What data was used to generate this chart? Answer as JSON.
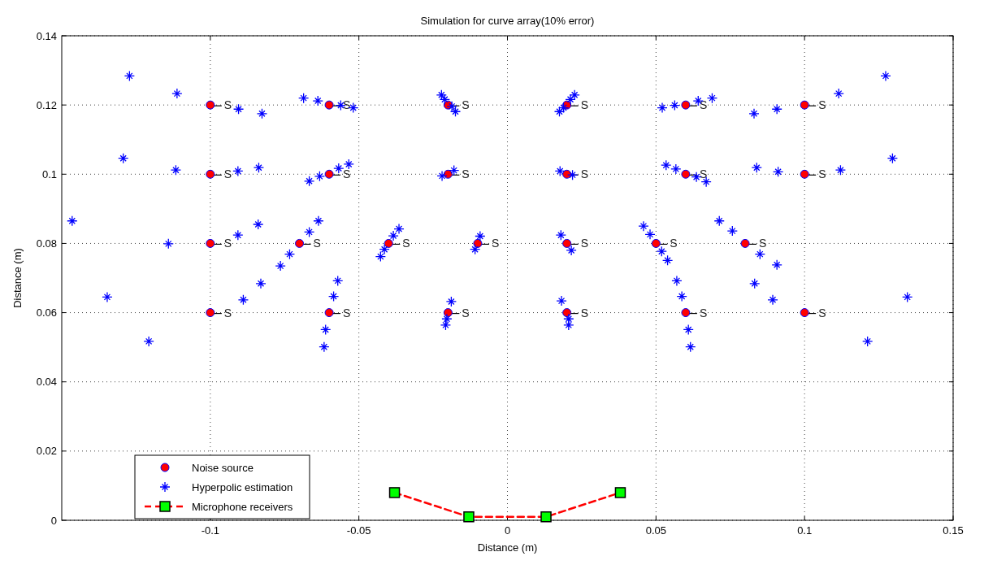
{
  "chart_data": {
    "type": "scatter",
    "title": "Simulation for curve array(10% error)",
    "xlabel": "Distance (m)",
    "ylabel": "Distance (m)",
    "xlim": [
      -0.15,
      0.15
    ],
    "xticks": [
      -0.1,
      -0.05,
      0,
      0.05,
      0.1,
      0.15
    ],
    "ylim": [
      0,
      0.14
    ],
    "yticks": [
      0,
      0.02,
      0.04,
      0.06,
      0.08,
      0.1,
      0.12,
      0.14
    ],
    "grid": true,
    "legend": "bottom left",
    "series": [
      {
        "name": "Noise source",
        "marker": "circle",
        "color": "#ff0000",
        "x": [
          -0.1,
          -0.06,
          -0.02,
          0.02,
          0.06,
          0.1,
          -0.1,
          -0.06,
          -0.02,
          0.02,
          0.06,
          0.1,
          -0.1,
          -0.07,
          -0.04,
          -0.01,
          0.02,
          0.05,
          0.08,
          -0.1,
          -0.06,
          -0.02,
          0.02,
          0.06,
          0.1
        ],
        "values": [
          0.12,
          0.12,
          0.12,
          0.12,
          0.12,
          0.12,
          0.1,
          0.1,
          0.1,
          0.1,
          0.1,
          0.1,
          0.08,
          0.08,
          0.08,
          0.08,
          0.08,
          0.08,
          0.08,
          0.06,
          0.06,
          0.06,
          0.06,
          0.06,
          0.06
        ]
      },
      {
        "name": "Hyperpolic estimation",
        "marker": "cross",
        "color": "#0000ff",
        "x": [
          -0.1272,
          -0.1112,
          -0.0905,
          -0.0826,
          -0.0686,
          -0.0638,
          -0.0561,
          -0.0519,
          -0.1293,
          -0.1116,
          -0.0907,
          -0.0837,
          -0.0667,
          -0.0632,
          -0.0568,
          -0.0534,
          -0.1465,
          -0.1141,
          -0.0907,
          -0.0839,
          -0.0636,
          -0.0667,
          -0.0733,
          -0.0764,
          -0.083,
          -0.0889,
          -0.1347,
          -0.1207,
          -0.0571,
          -0.0585,
          -0.0612,
          -0.0617,
          -0.0222,
          -0.0211,
          -0.0187,
          -0.0175,
          0.0175,
          0.0189,
          0.0212,
          0.0226,
          -0.022,
          -0.018,
          0.0177,
          0.0219,
          -0.0427,
          -0.0414,
          -0.0384,
          -0.0365,
          -0.0109,
          -0.0092,
          0.018,
          0.0215,
          -0.0208,
          -0.0204,
          -0.0189,
          0.0182,
          0.0206,
          0.0206,
          0.0458,
          0.048,
          0.0521,
          0.0563,
          0.0642,
          0.0689,
          0.083,
          0.0907,
          0.1115,
          0.1273,
          0.0534,
          0.0567,
          0.0636,
          0.0669,
          0.0839,
          0.0911,
          0.1121,
          0.1296,
          0.0713,
          0.0757,
          0.0519,
          0.0539,
          0.057,
          0.0587,
          0.0609,
          0.0616,
          0.085,
          0.0907,
          0.0832,
          0.0893,
          0.1346,
          0.1212
        ],
        "values": [
          0.1284,
          0.1233,
          0.1188,
          0.1175,
          0.122,
          0.1212,
          0.1199,
          0.1192,
          0.1046,
          0.1012,
          0.1009,
          0.1019,
          0.098,
          0.0994,
          0.1017,
          0.1029,
          0.0865,
          0.0799,
          0.0824,
          0.0855,
          0.0865,
          0.0833,
          0.0769,
          0.0735,
          0.0684,
          0.0637,
          0.0645,
          0.0517,
          0.0692,
          0.0647,
          0.0551,
          0.0501,
          0.1229,
          0.1216,
          0.1196,
          0.1181,
          0.1181,
          0.1192,
          0.1216,
          0.1229,
          0.0995,
          0.1011,
          0.1009,
          0.0998,
          0.0762,
          0.0783,
          0.0822,
          0.0842,
          0.0783,
          0.0821,
          0.0824,
          0.078,
          0.0564,
          0.0582,
          0.0632,
          0.0634,
          0.0582,
          0.0564,
          0.085,
          0.0826,
          0.1192,
          0.1199,
          0.1212,
          0.122,
          0.1175,
          0.1188,
          0.1233,
          0.1284,
          0.1026,
          0.1015,
          0.0992,
          0.0978,
          0.1019,
          0.1007,
          0.1012,
          0.1046,
          0.0865,
          0.0836,
          0.0777,
          0.0751,
          0.0692,
          0.0647,
          0.0551,
          0.0501,
          0.0769,
          0.0738,
          0.0684,
          0.0637,
          0.0645,
          0.0517
        ]
      },
      {
        "name": "Microphone receivers",
        "type": "line",
        "marker": "square",
        "line_style": "dashed",
        "color": "#ff0000",
        "colors": [
          "#00ff00",
          "#00ff00",
          "#00ff00",
          "#00ff00"
        ],
        "x": [
          -0.038,
          -0.013,
          0.013,
          0.038
        ],
        "values": [
          0.008,
          0.001,
          0.001,
          0.008
        ]
      }
    ],
    "annotations": [
      {
        "text": "S",
        "x": -0.1,
        "y": 0.12
      },
      {
        "text": "S",
        "x": -0.06,
        "y": 0.12
      },
      {
        "text": "S",
        "x": -0.02,
        "y": 0.12
      },
      {
        "text": "S",
        "x": 0.02,
        "y": 0.12
      },
      {
        "text": "S",
        "x": 0.06,
        "y": 0.12
      },
      {
        "text": "S",
        "x": 0.1,
        "y": 0.12
      },
      {
        "text": "S",
        "x": -0.1,
        "y": 0.1
      },
      {
        "text": "S",
        "x": -0.06,
        "y": 0.1
      },
      {
        "text": "S",
        "x": -0.02,
        "y": 0.1
      },
      {
        "text": "S",
        "x": 0.02,
        "y": 0.1
      },
      {
        "text": "S",
        "x": 0.06,
        "y": 0.1
      },
      {
        "text": "S",
        "x": 0.1,
        "y": 0.1
      },
      {
        "text": "S",
        "x": -0.1,
        "y": 0.08
      },
      {
        "text": "S",
        "x": -0.07,
        "y": 0.08
      },
      {
        "text": "S",
        "x": -0.04,
        "y": 0.08
      },
      {
        "text": "S",
        "x": -0.01,
        "y": 0.08
      },
      {
        "text": "S",
        "x": 0.02,
        "y": 0.08
      },
      {
        "text": "S",
        "x": 0.05,
        "y": 0.08
      },
      {
        "text": "S",
        "x": 0.08,
        "y": 0.08
      },
      {
        "text": "S",
        "x": -0.1,
        "y": 0.06
      },
      {
        "text": "S",
        "x": -0.06,
        "y": 0.06
      },
      {
        "text": "S",
        "x": -0.02,
        "y": 0.06
      },
      {
        "text": "S",
        "x": 0.02,
        "y": 0.06
      },
      {
        "text": "S",
        "x": 0.06,
        "y": 0.06
      },
      {
        "text": "S",
        "x": 0.1,
        "y": 0.06
      }
    ]
  }
}
